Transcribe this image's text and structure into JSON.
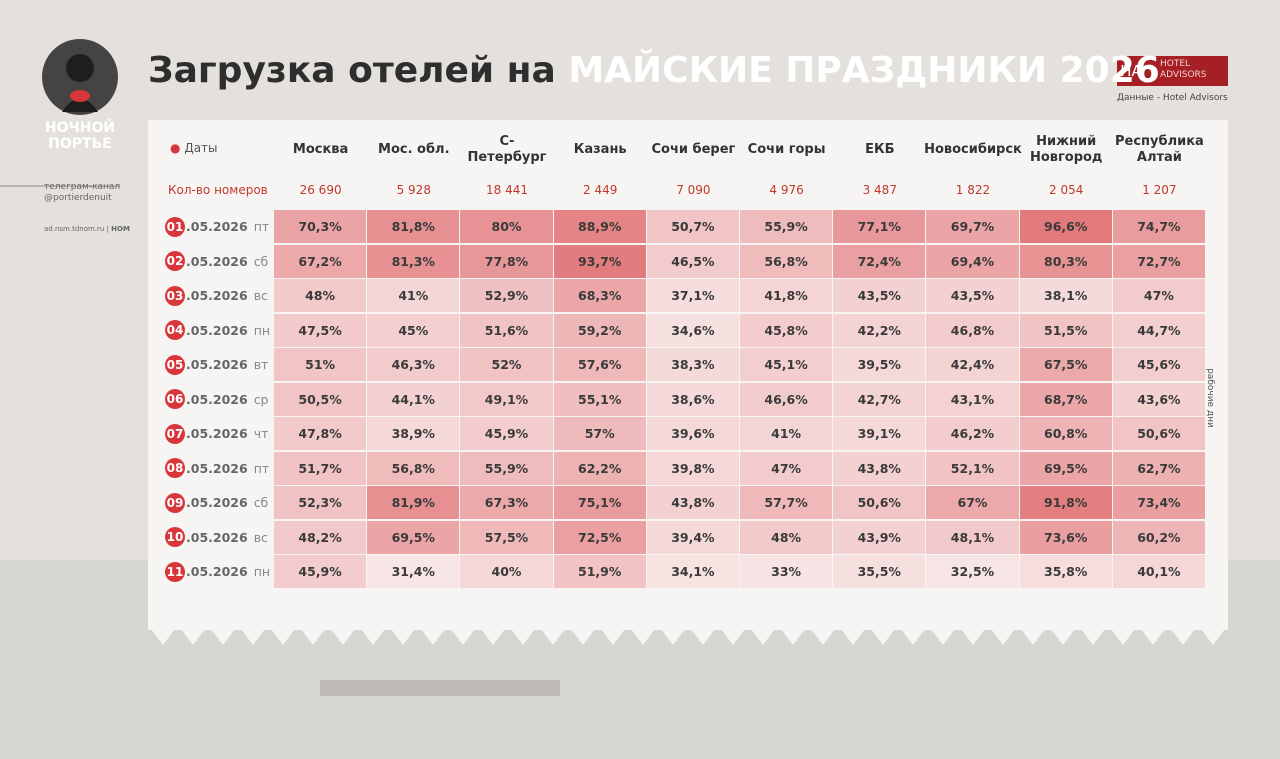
{
  "header": {
    "title_dark": "Загрузка отелей на",
    "title_light": "МАЙСКИЕ ПРАЗДНИКИ 2026"
  },
  "logo": {
    "line1": "НОЧНОЙ",
    "line2": "ПОРТЬЕ"
  },
  "sidebar": {
    "channel": "телеграм-канал",
    "handle": "@portierdenuit",
    "site": "ad.nsm.tdnom.ru",
    "brand": "НОМ"
  },
  "source": {
    "badge": "HA",
    "name1": "HOTEL",
    "name2": "ADVISORS",
    "note": "Данные - Hotel Advisors"
  },
  "table": {
    "dates_label": "Даты",
    "columns": [
      "Москва",
      "Мос. обл.",
      "С-Петербург",
      "Казань",
      "Сочи берег",
      "Сочи горы",
      "ЕКБ",
      "Новосибирск",
      "Нижний Новгород",
      "Республика Алтай"
    ],
    "count_label": "Кол-во номеров",
    "counts": [
      "26 690",
      "5 928",
      "18 441",
      "2 449",
      "7 090",
      "4 976",
      "3 487",
      "1 822",
      "2 054",
      "1 207"
    ],
    "rows": [
      {
        "day": "01",
        "date": ".05.2026",
        "dow": "пт",
        "cells": [
          "70,3%",
          "81,8%",
          "80%",
          "88,9%",
          "50,7%",
          "55,9%",
          "77,1%",
          "69,7%",
          "96,6%",
          "74,7%"
        ]
      },
      {
        "day": "02",
        "date": ".05.2026",
        "dow": "сб",
        "cells": [
          "67,2%",
          "81,3%",
          "77,8%",
          "93,7%",
          "46,5%",
          "56,8%",
          "72,4%",
          "69,4%",
          "80,3%",
          "72,7%"
        ]
      },
      {
        "day": "03",
        "date": ".05.2026",
        "dow": "вс",
        "cells": [
          "48%",
          "41%",
          "52,9%",
          "68,3%",
          "37,1%",
          "41,8%",
          "43,5%",
          "43,5%",
          "38,1%",
          "47%"
        ]
      },
      {
        "day": "04",
        "date": ".05.2026",
        "dow": "пн",
        "cells": [
          "47,5%",
          "45%",
          "51,6%",
          "59,2%",
          "34,6%",
          "45,8%",
          "42,2%",
          "46,8%",
          "51,5%",
          "44,7%"
        ]
      },
      {
        "day": "05",
        "date": ".05.2026",
        "dow": "вт",
        "cells": [
          "51%",
          "46,3%",
          "52%",
          "57,6%",
          "38,3%",
          "45,1%",
          "39,5%",
          "42,4%",
          "67,5%",
          "45,6%"
        ]
      },
      {
        "day": "06",
        "date": ".05.2026",
        "dow": "ср",
        "cells": [
          "50,5%",
          "44,1%",
          "49,1%",
          "55,1%",
          "38,6%",
          "46,6%",
          "42,7%",
          "43,1%",
          "68,7%",
          "43,6%"
        ]
      },
      {
        "day": "07",
        "date": ".05.2026",
        "dow": "чт",
        "cells": [
          "47,8%",
          "38,9%",
          "45,9%",
          "57%",
          "39,6%",
          "41%",
          "39,1%",
          "46,2%",
          "60,8%",
          "50,6%"
        ]
      },
      {
        "day": "08",
        "date": ".05.2026",
        "dow": "пт",
        "cells": [
          "51,7%",
          "56,8%",
          "55,9%",
          "62,2%",
          "39,8%",
          "47%",
          "43,8%",
          "52,1%",
          "69,5%",
          "62,7%"
        ]
      },
      {
        "day": "09",
        "date": ".05.2026",
        "dow": "сб",
        "cells": [
          "52,3%",
          "81,9%",
          "67,3%",
          "75,1%",
          "43,8%",
          "57,7%",
          "50,6%",
          "67%",
          "91,8%",
          "73,4%"
        ]
      },
      {
        "day": "10",
        "date": ".05.2026",
        "dow": "вс",
        "cells": [
          "48,2%",
          "69,5%",
          "57,5%",
          "72,5%",
          "39,4%",
          "48%",
          "43,9%",
          "48,1%",
          "73,6%",
          "60,2%"
        ]
      },
      {
        "day": "11",
        "date": ".05.2026",
        "dow": "пн",
        "cells": [
          "45,9%",
          "31,4%",
          "40%",
          "51,9%",
          "34,1%",
          "33%",
          "35,5%",
          "32,5%",
          "35,8%",
          "40,1%"
        ]
      }
    ],
    "bracket_label": "рабочие дни"
  }
}
